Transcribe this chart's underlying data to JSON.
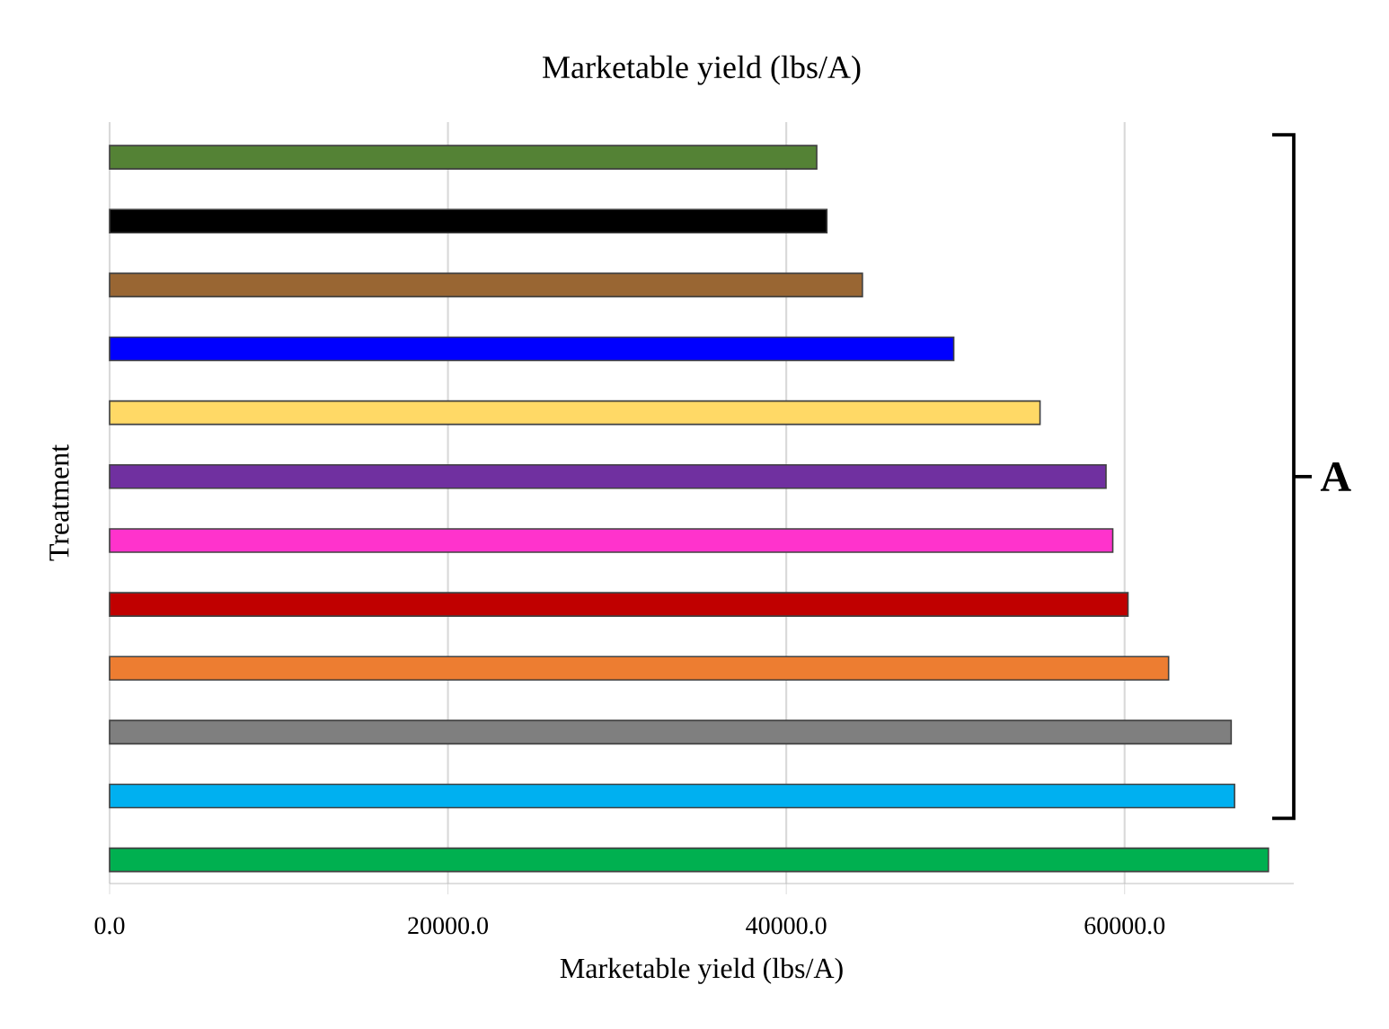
{
  "chart_data": {
    "type": "bar",
    "orientation": "horizontal",
    "title": "Marketable yield (lbs/A)",
    "xlabel": "Marketable yield (lbs/A)",
    "ylabel": "Treatment",
    "categories": [
      null,
      null,
      null,
      null,
      null,
      null,
      null,
      null,
      null,
      null,
      null,
      null
    ],
    "values": [
      41800,
      42400,
      44500,
      49900,
      55000,
      58900,
      59300,
      60200,
      62600,
      66300,
      66500,
      68500
    ],
    "colors": [
      "#548235",
      "#000000",
      "#996633",
      "#0000ff",
      "#ffd966",
      "#7030a0",
      "#ff33cc",
      "#c00000",
      "#ed7d31",
      "#7f7f7f",
      "#00b0f0",
      "#00b050"
    ],
    "xlim": [
      0,
      70000
    ],
    "xticks": [
      {
        "value": 0,
        "label": "0.0"
      },
      {
        "value": 20000,
        "label": "20000.0"
      },
      {
        "value": 40000,
        "label": "40000.0"
      },
      {
        "value": 60000,
        "label": "60000.0"
      }
    ],
    "grid": "x",
    "annotations": [
      "A"
    ]
  }
}
